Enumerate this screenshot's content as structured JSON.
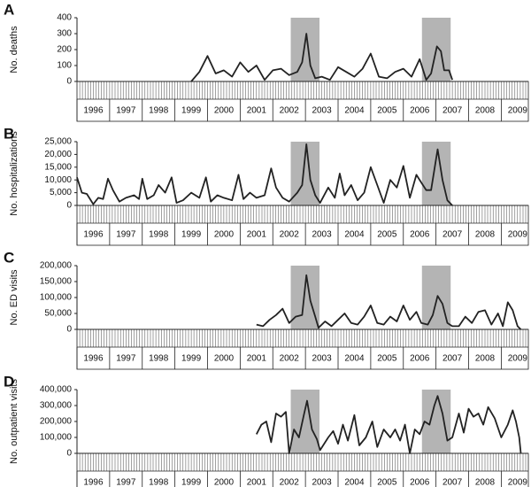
{
  "chart_data": [
    {
      "type": "line",
      "panel_label": "A",
      "ylabel": "No. deaths",
      "color": "#222222",
      "shade_color": "#b4b4b4",
      "xlim": [
        1995.5,
        2009.33
      ],
      "ylim": [
        0,
        400
      ],
      "yticks": [
        0,
        100,
        200,
        300,
        400
      ],
      "xticks": [
        1996,
        1997,
        1998,
        1999,
        2000,
        2001,
        2002,
        2003,
        2004,
        2005,
        2006,
        2007,
        2008,
        2009
      ],
      "shaded": [
        [
          2002.05,
          2002.93
        ],
        [
          2006.07,
          2006.95
        ]
      ],
      "x": [
        1999.0,
        1999.25,
        1999.5,
        1999.75,
        2000.0,
        2000.25,
        2000.5,
        2000.75,
        2001.0,
        2001.25,
        2001.5,
        2001.75,
        2002.0,
        2002.25,
        2002.4,
        2002.53,
        2002.65,
        2002.8,
        2003.0,
        2003.25,
        2003.5,
        2003.75,
        2004.0,
        2004.25,
        2004.5,
        2004.75,
        2005.0,
        2005.25,
        2005.5,
        2005.75,
        2006.0,
        2006.2,
        2006.35,
        2006.53,
        2006.65,
        2006.75,
        2006.9,
        2007.0
      ],
      "values": [
        0,
        60,
        160,
        50,
        70,
        30,
        120,
        60,
        100,
        10,
        70,
        80,
        40,
        60,
        120,
        300,
        100,
        20,
        30,
        10,
        90,
        60,
        30,
        80,
        175,
        30,
        20,
        60,
        80,
        30,
        140,
        10,
        50,
        220,
        190,
        70,
        70,
        10
      ]
    },
    {
      "type": "line",
      "panel_label": "B",
      "ylabel": "No. hospitalizations",
      "color": "#222222",
      "shade_color": "#b4b4b4",
      "xlim": [
        1995.5,
        2009.33
      ],
      "ylim": [
        0,
        25000
      ],
      "yticks": [
        0,
        {
          "value": 5000,
          "label": "5,000"
        },
        {
          "value": 10000,
          "label": "10,000"
        },
        {
          "value": 15000,
          "label": "15,000"
        },
        {
          "value": 20000,
          "label": "20,000"
        },
        {
          "value": 25000,
          "label": "25,000"
        }
      ],
      "xticks": [
        1996,
        1997,
        1998,
        1999,
        2000,
        2001,
        2002,
        2003,
        2004,
        2005,
        2006,
        2007,
        2008,
        2009
      ],
      "shaded": [
        [
          2002.05,
          2002.93
        ],
        [
          2006.07,
          2006.95
        ]
      ],
      "x": [
        1995.5,
        1995.65,
        1995.8,
        1996.0,
        1996.15,
        1996.3,
        1996.45,
        1996.6,
        1996.8,
        1997.0,
        1997.25,
        1997.4,
        1997.5,
        1997.65,
        1997.85,
        1998.0,
        1998.2,
        1998.4,
        1998.55,
        1998.75,
        1999.0,
        1999.25,
        1999.45,
        1999.6,
        1999.8,
        2000.0,
        2000.25,
        2000.45,
        2000.6,
        2000.8,
        2001.0,
        2001.25,
        2001.45,
        2001.6,
        2001.8,
        2002.0,
        2002.25,
        2002.4,
        2002.53,
        2002.65,
        2002.8,
        2002.95,
        2003.2,
        2003.4,
        2003.55,
        2003.7,
        2003.9,
        2004.1,
        2004.3,
        2004.5,
        2004.7,
        2004.9,
        2005.1,
        2005.3,
        2005.5,
        2005.7,
        2005.9,
        2006.05,
        2006.2,
        2006.35,
        2006.55,
        2006.7,
        2006.85,
        2007.0
      ],
      "values": [
        11000,
        5000,
        4500,
        500,
        3000,
        2500,
        10500,
        6000,
        1500,
        3000,
        4000,
        2500,
        10500,
        2500,
        4000,
        8000,
        5000,
        11000,
        1000,
        2000,
        5000,
        3000,
        11000,
        1500,
        4000,
        3000,
        2000,
        12000,
        2500,
        5000,
        3000,
        4000,
        14500,
        7000,
        3000,
        1500,
        5000,
        8000,
        24000,
        10000,
        4000,
        1000,
        7000,
        3000,
        12500,
        4000,
        8000,
        2000,
        5000,
        15000,
        8000,
        1000,
        10000,
        7000,
        15500,
        3000,
        12000,
        9000,
        6000,
        6000,
        22000,
        10000,
        2000,
        0
      ]
    },
    {
      "type": "line",
      "panel_label": "C",
      "ylabel": "No. ED visits",
      "color": "#222222",
      "shade_color": "#b4b4b4",
      "xlim": [
        1995.5,
        2009.33
      ],
      "ylim": [
        0,
        200000
      ],
      "yticks": [
        0,
        {
          "value": 50000,
          "label": "50,000"
        },
        {
          "value": 100000,
          "label": "100,000"
        },
        {
          "value": 150000,
          "label": "150,000"
        },
        {
          "value": 200000,
          "label": "200,000"
        }
      ],
      "xticks": [
        1996,
        1997,
        1998,
        1999,
        2000,
        2001,
        2002,
        2003,
        2004,
        2005,
        2006,
        2007,
        2008,
        2009
      ],
      "shaded": [
        [
          2002.05,
          2002.93
        ],
        [
          2006.07,
          2006.95
        ]
      ],
      "x": [
        2001.0,
        2001.2,
        2001.4,
        2001.6,
        2001.8,
        2002.0,
        2002.2,
        2002.4,
        2002.53,
        2002.65,
        2002.8,
        2002.9,
        2003.1,
        2003.3,
        2003.5,
        2003.7,
        2003.9,
        2004.1,
        2004.3,
        2004.5,
        2004.7,
        2004.9,
        2005.1,
        2005.3,
        2005.5,
        2005.7,
        2005.9,
        2006.05,
        2006.25,
        2006.4,
        2006.55,
        2006.7,
        2006.85,
        2007.0,
        2007.2,
        2007.4,
        2007.6,
        2007.8,
        2008.0,
        2008.2,
        2008.4,
        2008.55,
        2008.7,
        2008.85,
        2009.0,
        2009.1
      ],
      "values": [
        15000,
        10000,
        30000,
        45000,
        65000,
        20000,
        40000,
        45000,
        170000,
        90000,
        40000,
        5000,
        25000,
        10000,
        30000,
        50000,
        20000,
        15000,
        40000,
        75000,
        20000,
        15000,
        40000,
        25000,
        75000,
        30000,
        55000,
        20000,
        15000,
        45000,
        105000,
        80000,
        20000,
        10000,
        10000,
        40000,
        20000,
        55000,
        60000,
        15000,
        50000,
        10000,
        85000,
        60000,
        10000,
        0
      ]
    },
    {
      "type": "line",
      "panel_label": "D",
      "ylabel": "No. outpatient visits",
      "color": "#222222",
      "shade_color": "#b4b4b4",
      "xlim": [
        1995.5,
        2009.33
      ],
      "ylim": [
        0,
        400000
      ],
      "yticks": [
        0,
        {
          "value": 100000,
          "label": "100,000"
        },
        {
          "value": 200000,
          "label": "200,000"
        },
        {
          "value": 300000,
          "label": "300,000"
        },
        {
          "value": 400000,
          "label": "400,000"
        }
      ],
      "xticks": [
        1996,
        1997,
        1998,
        1999,
        2000,
        2001,
        2002,
        2003,
        2004,
        2005,
        2006,
        2007,
        2008,
        2009
      ],
      "shaded": [
        [
          2002.05,
          2002.93
        ],
        [
          2006.07,
          2006.95
        ]
      ],
      "x": [
        2001.0,
        2001.15,
        2001.3,
        2001.45,
        2001.6,
        2001.75,
        2001.9,
        2002.0,
        2002.15,
        2002.3,
        2002.45,
        2002.55,
        2002.7,
        2002.85,
        2002.95,
        2003.2,
        2003.35,
        2003.5,
        2003.65,
        2003.8,
        2004.0,
        2004.15,
        2004.35,
        2004.55,
        2004.7,
        2004.9,
        2005.1,
        2005.25,
        2005.4,
        2005.55,
        2005.7,
        2005.85,
        2006.0,
        2006.15,
        2006.3,
        2006.45,
        2006.55,
        2006.7,
        2006.85,
        2007.0,
        2007.2,
        2007.35,
        2007.5,
        2007.65,
        2007.8,
        2007.95,
        2008.1,
        2008.3,
        2008.5,
        2008.7,
        2008.85,
        2008.95,
        2009.05,
        2009.1
      ],
      "values": [
        120000,
        180000,
        200000,
        70000,
        250000,
        230000,
        260000,
        0,
        150000,
        100000,
        240000,
        330000,
        150000,
        90000,
        20000,
        100000,
        140000,
        60000,
        180000,
        80000,
        240000,
        50000,
        100000,
        200000,
        40000,
        150000,
        100000,
        150000,
        80000,
        180000,
        0,
        150000,
        120000,
        200000,
        180000,
        300000,
        360000,
        250000,
        80000,
        100000,
        250000,
        130000,
        280000,
        230000,
        250000,
        180000,
        290000,
        220000,
        100000,
        180000,
        270000,
        200000,
        100000,
        0
      ]
    }
  ]
}
